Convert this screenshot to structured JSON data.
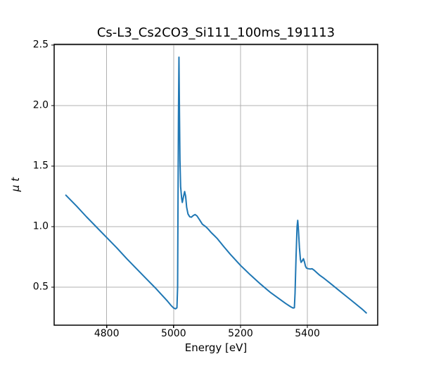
{
  "figure": {
    "background": "#ffffff"
  },
  "chart_data": {
    "type": "line",
    "title": "Cs-L3_Cs2CO3_Si111_100ms_191113",
    "xlabel": "Energy [eV]",
    "ylabel": "μ t",
    "xlim": [
      4643,
      5610
    ],
    "ylim": [
      0.186,
      2.506
    ],
    "xticks": [
      4800,
      5000,
      5200,
      5400
    ],
    "xtick_labels": [
      "4800",
      "5000",
      "5200",
      "5400"
    ],
    "yticks": [
      0.5,
      1.0,
      1.5,
      2.0,
      2.5
    ],
    "ytick_labels": [
      "0.5",
      "1.0",
      "1.5",
      "2.0",
      "2.5"
    ],
    "grid": true,
    "legend": false,
    "colors": {
      "line": "#1f77b4",
      "grid": "#b0b0b0",
      "spine": "#000000",
      "text": "#000000",
      "background": "#ffffff"
    },
    "series": [
      {
        "name": "mu_t",
        "color": "#1f77b4",
        "points": [
          [
            4678,
            1.26
          ],
          [
            4710,
            1.17
          ],
          [
            4740,
            1.08
          ],
          [
            4770,
            0.995
          ],
          [
            4800,
            0.91
          ],
          [
            4830,
            0.825
          ],
          [
            4860,
            0.735
          ],
          [
            4890,
            0.65
          ],
          [
            4920,
            0.565
          ],
          [
            4945,
            0.495
          ],
          [
            4965,
            0.435
          ],
          [
            4980,
            0.39
          ],
          [
            4992,
            0.35
          ],
          [
            5000,
            0.328
          ],
          [
            5006,
            0.321
          ],
          [
            5010,
            0.33
          ],
          [
            5012,
            0.5
          ],
          [
            5013,
            1.1
          ],
          [
            5014.5,
            1.9
          ],
          [
            5016,
            2.4
          ],
          [
            5017.5,
            1.95
          ],
          [
            5019,
            1.55
          ],
          [
            5021,
            1.33
          ],
          [
            5024,
            1.235
          ],
          [
            5026,
            1.2
          ],
          [
            5029,
            1.24
          ],
          [
            5033,
            1.29
          ],
          [
            5036,
            1.25
          ],
          [
            5039,
            1.16
          ],
          [
            5043,
            1.105
          ],
          [
            5048,
            1.082
          ],
          [
            5053,
            1.078
          ],
          [
            5058,
            1.09
          ],
          [
            5064,
            1.1
          ],
          [
            5070,
            1.088
          ],
          [
            5078,
            1.055
          ],
          [
            5086,
            1.02
          ],
          [
            5096,
            1.0
          ],
          [
            5104,
            0.978
          ],
          [
            5112,
            0.952
          ],
          [
            5122,
            0.925
          ],
          [
            5131,
            0.9
          ],
          [
            5150,
            0.835
          ],
          [
            5170,
            0.77
          ],
          [
            5200,
            0.68
          ],
          [
            5230,
            0.6
          ],
          [
            5260,
            0.525
          ],
          [
            5290,
            0.455
          ],
          [
            5315,
            0.405
          ],
          [
            5335,
            0.365
          ],
          [
            5350,
            0.338
          ],
          [
            5357,
            0.328
          ],
          [
            5361,
            0.33
          ],
          [
            5363,
            0.45
          ],
          [
            5366,
            0.75
          ],
          [
            5369,
            1.0
          ],
          [
            5371,
            1.052
          ],
          [
            5373,
            0.98
          ],
          [
            5376,
            0.83
          ],
          [
            5379,
            0.73
          ],
          [
            5381,
            0.705
          ],
          [
            5384,
            0.715
          ],
          [
            5388,
            0.735
          ],
          [
            5391,
            0.71
          ],
          [
            5394,
            0.675
          ],
          [
            5397,
            0.658
          ],
          [
            5402,
            0.653
          ],
          [
            5408,
            0.65
          ],
          [
            5414,
            0.652
          ],
          [
            5420,
            0.64
          ],
          [
            5428,
            0.62
          ],
          [
            5436,
            0.6
          ],
          [
            5450,
            0.572
          ],
          [
            5470,
            0.528
          ],
          [
            5490,
            0.483
          ],
          [
            5510,
            0.438
          ],
          [
            5530,
            0.394
          ],
          [
            5550,
            0.349
          ],
          [
            5565,
            0.315
          ],
          [
            5576,
            0.287
          ]
        ]
      }
    ]
  }
}
